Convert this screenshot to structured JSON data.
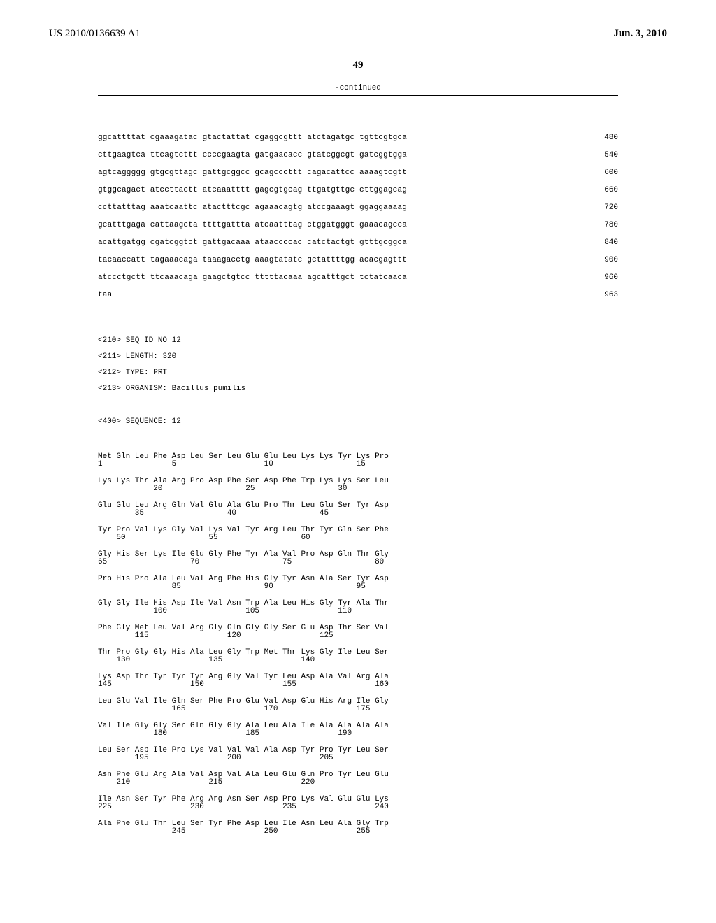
{
  "header": {
    "pub_number": "US 2010/0136639 A1",
    "pub_date": "Jun. 3, 2010"
  },
  "page_number": "49",
  "continued_label": "-continued",
  "dna": {
    "lines": [
      {
        "seq": "ggcattttat cgaaagatac gtactattat cgaggcgttt atctagatgc tgttcgtgca",
        "pos": "480"
      },
      {
        "seq": "cttgaagtca ttcagtcttt ccccgaagta gatgaacacc gtatcggcgt gatcggtgga",
        "pos": "540"
      },
      {
        "seq": "agtcaggggg gtgcgttagc gattgcggcc gcagcccttt cagacattcc aaaagtcgtt",
        "pos": "600"
      },
      {
        "seq": "gtggcagact atccttactt atcaaatttt gagcgtgcag ttgatgttgc cttggagcag",
        "pos": "660"
      },
      {
        "seq": "ccttatttag aaatcaattc atactttcgc agaaacagtg atccgaaagt ggaggaaaag",
        "pos": "720"
      },
      {
        "seq": "gcatttgaga cattaagcta ttttgattta atcaatttag ctggatgggt gaaacagcca",
        "pos": "780"
      },
      {
        "seq": "acattgatgg cgatcggtct gattgacaaa ataaccccac catctactgt gtttgcggca",
        "pos": "840"
      },
      {
        "seq": "tacaaccatt tagaaacaga taaagacctg aaagtatatc gctattttgg acacgagttt",
        "pos": "900"
      },
      {
        "seq": "atccctgctt ttcaaacaga gaagctgtcc tttttacaaa agcatttgct tctatcaaca",
        "pos": "960"
      },
      {
        "seq": "taa",
        "pos": "963"
      }
    ]
  },
  "seq_header": {
    "l1": "<210> SEQ ID NO 12",
    "l2": "<211> LENGTH: 320",
    "l3": "<212> TYPE: PRT",
    "l4": "<213> ORGANISM: Bacillus pumilis",
    "l5": "<400> SEQUENCE: 12"
  },
  "protein": {
    "rows": [
      {
        "aa": "Met Gln Leu Phe Asp Leu Ser Leu Glu Glu Leu Lys Lys Tyr Lys Pro",
        "pos": "1               5                   10                  15"
      },
      {
        "aa": "Lys Lys Thr Ala Arg Pro Asp Phe Ser Asp Phe Trp Lys Lys Ser Leu",
        "pos": "            20                  25                  30"
      },
      {
        "aa": "Glu Glu Leu Arg Gln Val Glu Ala Glu Pro Thr Leu Glu Ser Tyr Asp",
        "pos": "        35                  40                  45"
      },
      {
        "aa": "Tyr Pro Val Lys Gly Val Lys Val Tyr Arg Leu Thr Tyr Gln Ser Phe",
        "pos": "    50                  55                  60"
      },
      {
        "aa": "Gly His Ser Lys Ile Glu Gly Phe Tyr Ala Val Pro Asp Gln Thr Gly",
        "pos": "65                  70                  75                  80"
      },
      {
        "aa": "Pro His Pro Ala Leu Val Arg Phe His Gly Tyr Asn Ala Ser Tyr Asp",
        "pos": "                85                  90                  95"
      },
      {
        "aa": "Gly Gly Ile His Asp Ile Val Asn Trp Ala Leu His Gly Tyr Ala Thr",
        "pos": "            100                 105                 110"
      },
      {
        "aa": "Phe Gly Met Leu Val Arg Gly Gln Gly Gly Ser Glu Asp Thr Ser Val",
        "pos": "        115                 120                 125"
      },
      {
        "aa": "Thr Pro Gly Gly His Ala Leu Gly Trp Met Thr Lys Gly Ile Leu Ser",
        "pos": "    130                 135                 140"
      },
      {
        "aa": "Lys Asp Thr Tyr Tyr Tyr Arg Gly Val Tyr Leu Asp Ala Val Arg Ala",
        "pos": "145                 150                 155                 160"
      },
      {
        "aa": "Leu Glu Val Ile Gln Ser Phe Pro Glu Val Asp Glu His Arg Ile Gly",
        "pos": "                165                 170                 175"
      },
      {
        "aa": "Val Ile Gly Gly Ser Gln Gly Gly Ala Leu Ala Ile Ala Ala Ala Ala",
        "pos": "            180                 185                 190"
      },
      {
        "aa": "Leu Ser Asp Ile Pro Lys Val Val Val Ala Asp Tyr Pro Tyr Leu Ser",
        "pos": "        195                 200                 205"
      },
      {
        "aa": "Asn Phe Glu Arg Ala Val Asp Val Ala Leu Glu Gln Pro Tyr Leu Glu",
        "pos": "    210                 215                 220"
      },
      {
        "aa": "Ile Asn Ser Tyr Phe Arg Arg Asn Ser Asp Pro Lys Val Glu Glu Lys",
        "pos": "225                 230                 235                 240"
      },
      {
        "aa": "Ala Phe Glu Thr Leu Ser Tyr Phe Asp Leu Ile Asn Leu Ala Gly Trp",
        "pos": "                245                 250                 255"
      }
    ]
  }
}
